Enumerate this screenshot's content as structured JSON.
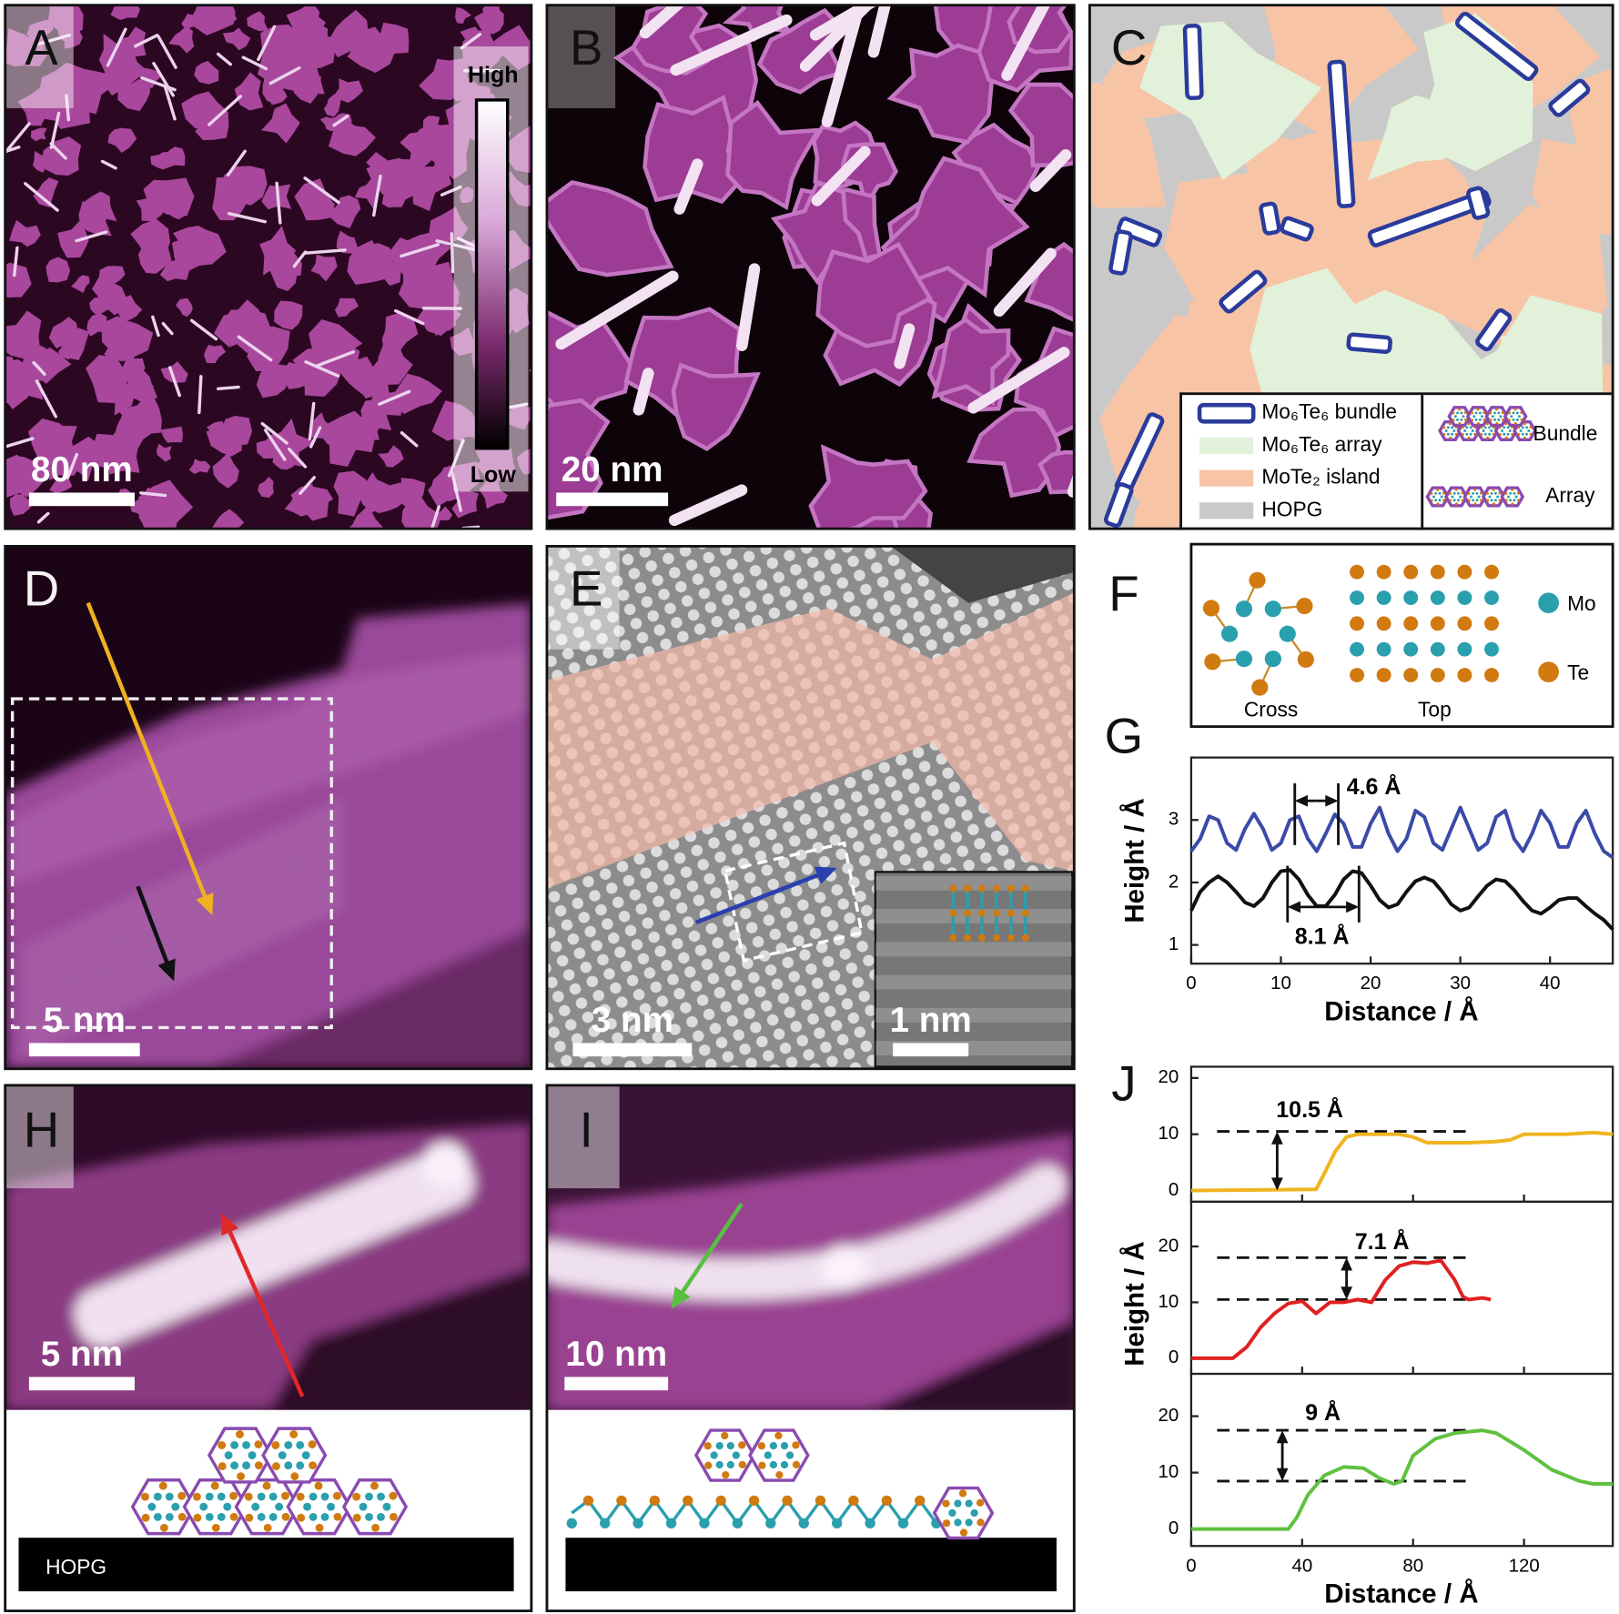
{
  "labels": [
    "A",
    "B",
    "C",
    "D",
    "E",
    "F",
    "G",
    "H",
    "I",
    "J"
  ],
  "scale_bars": [
    "80 nm",
    "20 nm",
    "5 nm",
    "3 nm",
    "1 nm",
    "5 nm",
    "10 nm"
  ],
  "colorbar": {
    "high": "High",
    "low": "Low"
  },
  "legend_c": [
    "Mo₆Te₆ bundle",
    "Mo₆Te₆ array",
    "MoTe₂ island",
    "HOPG"
  ],
  "legend_c_models": [
    "Bundle",
    "Array"
  ],
  "panel_f": {
    "atoms": [
      "Mo",
      "Te"
    ],
    "views": [
      "Cross",
      "Top"
    ]
  },
  "panel_h_substrate": "HOPG",
  "chart_data": [
    {
      "type": "line",
      "ylabel": "Height / Å",
      "xlabel": "Distance / Å",
      "x": [
        0,
        1,
        2,
        3,
        4,
        5,
        6,
        7,
        8,
        9,
        10,
        11,
        12,
        13,
        14,
        15,
        16,
        17,
        18,
        19,
        20,
        21,
        22,
        23,
        24,
        25,
        26,
        27,
        28,
        29,
        30,
        31,
        32,
        33,
        34,
        35,
        36,
        37,
        38,
        39,
        40,
        41,
        42,
        43,
        44,
        45,
        46,
        47
      ],
      "series": [
        {
          "color": "#3a4aa8",
          "values": [
            2.5,
            2.7,
            3.06,
            3.0,
            2.63,
            2.52,
            2.86,
            3.1,
            2.86,
            2.52,
            2.63,
            3.0,
            3.06,
            2.7,
            2.5,
            2.78,
            3.09,
            2.94,
            2.57,
            2.57,
            2.94,
            3.2,
            2.78,
            2.5,
            2.7,
            3.15,
            3.05,
            2.63,
            2.52,
            2.86,
            3.2,
            2.86,
            2.52,
            2.63,
            3.05,
            3.15,
            2.7,
            2.5,
            2.78,
            3.15,
            2.95,
            2.57,
            2.57,
            2.95,
            3.15,
            2.78,
            2.5,
            2.4
          ]
        },
        {
          "color": "#111111",
          "values": [
            1.55,
            1.85,
            2.0,
            2.1,
            2.0,
            1.85,
            1.68,
            1.62,
            1.75,
            2.0,
            2.18,
            2.2,
            2.05,
            1.8,
            1.62,
            1.62,
            1.8,
            2.05,
            2.18,
            2.15,
            1.95,
            1.72,
            1.6,
            1.65,
            1.85,
            2.02,
            2.08,
            2.02,
            1.85,
            1.65,
            1.55,
            1.6,
            1.78,
            1.95,
            2.05,
            2.02,
            1.88,
            1.7,
            1.55,
            1.5,
            1.6,
            1.72,
            1.75,
            1.75,
            1.62,
            1.5,
            1.4,
            1.25
          ]
        }
      ],
      "xlim": [
        0,
        47
      ],
      "ylim": [
        0.7,
        4.0
      ],
      "xticks": [
        0,
        10,
        20,
        30,
        40
      ],
      "yticks": [
        1,
        2,
        3
      ],
      "annotations": [
        "4.6 Å",
        "8.1 Å"
      ]
    },
    {
      "type": "line",
      "x": [
        0,
        45,
        48,
        52,
        56,
        60,
        75,
        80,
        85,
        100,
        110,
        115,
        120,
        135,
        145,
        152
      ],
      "series": [
        {
          "color": "#f0b420",
          "values": [
            0,
            0.2,
            3,
            7,
            9.5,
            10,
            10,
            9.5,
            8.5,
            8.5,
            8.7,
            9,
            10,
            10,
            10.3,
            10
          ]
        }
      ],
      "xlim": [
        0,
        152
      ],
      "ylim": [
        -2,
        22
      ],
      "xticks": [
        0,
        40,
        80,
        120
      ],
      "yticks": [
        0,
        10,
        20
      ],
      "hlines": [
        10.5
      ],
      "annotations": [
        "10.5 Å"
      ]
    },
    {
      "type": "line",
      "ylabel": "Height / Å",
      "x": [
        0,
        15,
        20,
        25,
        30,
        35,
        40,
        45,
        50,
        55,
        60,
        65,
        70,
        75,
        80,
        85,
        90,
        95,
        98,
        100,
        105,
        108
      ],
      "series": [
        {
          "color": "#e02020",
          "values": [
            0,
            0,
            2,
            5.5,
            8,
            9.8,
            10.2,
            8,
            10,
            10,
            10.5,
            10,
            14,
            16.5,
            17.2,
            17,
            17.5,
            14,
            11,
            10.5,
            10.8,
            10.5
          ]
        }
      ],
      "xlim": [
        0,
        152
      ],
      "ylim": [
        -2.8,
        28
      ],
      "xticks": [
        0,
        40,
        80,
        120
      ],
      "yticks": [
        0,
        10,
        20
      ],
      "hlines": [
        18,
        10.5
      ],
      "annotations": [
        "7.1 Å"
      ]
    },
    {
      "type": "line",
      "xlabel": "Distance / Å",
      "x": [
        0,
        35,
        38,
        42,
        48,
        55,
        62,
        68,
        73,
        76,
        80,
        88,
        95,
        105,
        110,
        120,
        130,
        140,
        145,
        152
      ],
      "series": [
        {
          "color": "#60c040",
          "values": [
            0,
            0,
            2,
            6,
            9.5,
            11,
            10.8,
            9,
            8,
            8.5,
            13,
            16,
            17,
            17.5,
            17,
            14,
            10.5,
            8.5,
            8,
            8
          ]
        }
      ],
      "xlim": [
        0,
        152
      ],
      "ylim": [
        -3,
        27.5
      ],
      "xticks": [
        0,
        40,
        80,
        120
      ],
      "yticks": [
        0,
        10,
        20
      ],
      "hlines": [
        17.5,
        8.5
      ],
      "annotations": [
        "9 Å"
      ]
    }
  ]
}
